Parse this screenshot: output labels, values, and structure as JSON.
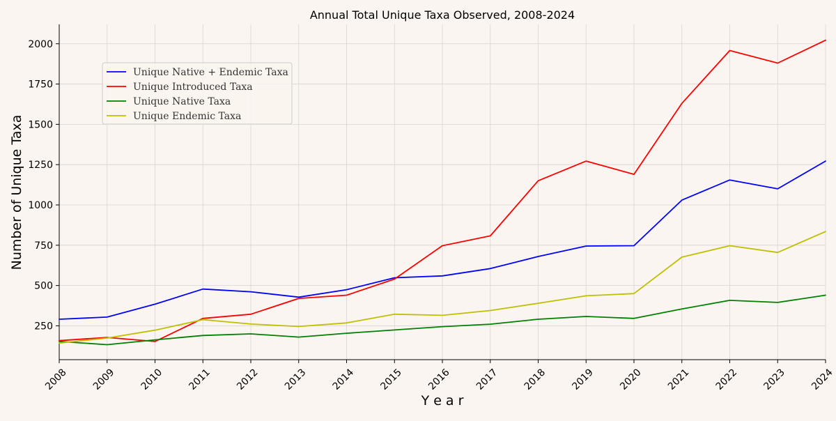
{
  "chart_data": {
    "type": "line",
    "title": "Annual Total Unique Taxa Observed, 2008-2024",
    "xlabel": "Y e a r",
    "ylabel": "Number of Unique Taxa",
    "x": [
      2008,
      2009,
      2010,
      2011,
      2012,
      2013,
      2014,
      2015,
      2016,
      2017,
      2018,
      2019,
      2020,
      2021,
      2022,
      2023,
      2024
    ],
    "xlim": [
      2008,
      2024
    ],
    "ylim": [
      40,
      2120
    ],
    "yticks": [
      250,
      500,
      750,
      1000,
      1250,
      1500,
      1750,
      2000
    ],
    "grid": true,
    "legend_position": "upper-left",
    "series": [
      {
        "name": "Unique Native + Endemic Taxa",
        "color": "#0000ff",
        "values": [
          291,
          304,
          384,
          478,
          461,
          428,
          474,
          548,
          560,
          605,
          680,
          745,
          747,
          1030,
          1155,
          1100,
          1272
        ]
      },
      {
        "name": "Unique Introduced Taxa",
        "color": "#ff0000",
        "values": [
          158,
          178,
          153,
          296,
          322,
          420,
          440,
          540,
          747,
          808,
          1150,
          1272,
          1190,
          1630,
          1958,
          1880,
          2022
        ]
      },
      {
        "name": "Unique Native Taxa",
        "color": "#008000",
        "values": [
          153,
          133,
          163,
          190,
          200,
          180,
          204,
          224,
          245,
          260,
          291,
          308,
          296,
          355,
          408,
          395,
          440
        ]
      },
      {
        "name": "Unique Endemic Taxa",
        "color": "#bfbf00",
        "values": [
          143,
          174,
          223,
          288,
          261,
          246,
          268,
          322,
          315,
          345,
          390,
          436,
          450,
          676,
          747,
          705,
          835
        ]
      }
    ]
  }
}
